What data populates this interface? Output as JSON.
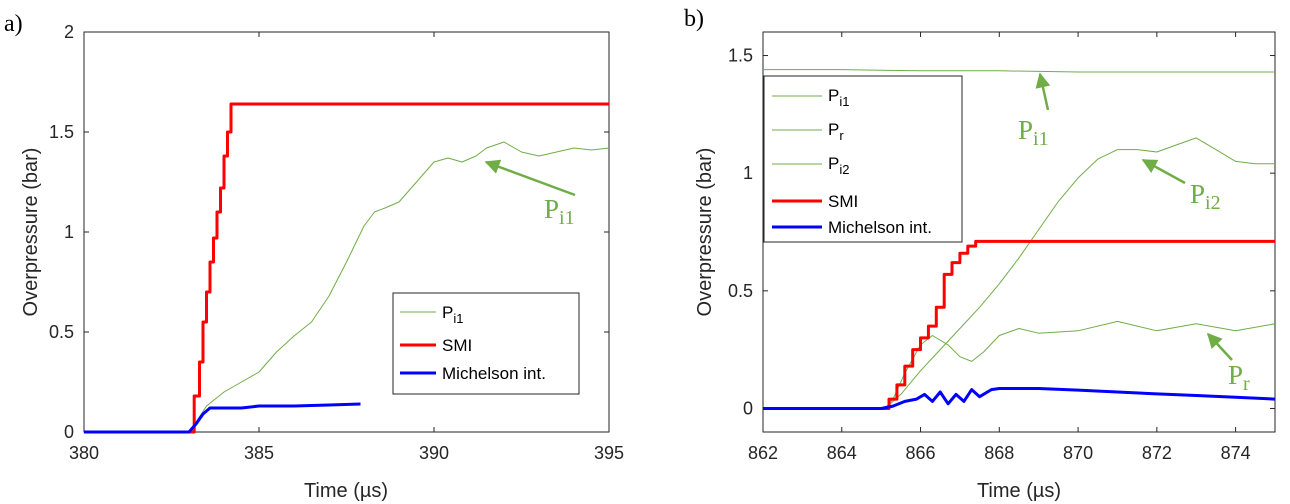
{
  "colors": {
    "incident": "#70AD47",
    "smi": "#FF0000",
    "michelson": "#0000FF",
    "axis": "#262626"
  },
  "chart_data": [
    {
      "panel_label": "a)",
      "type": "line",
      "xlabel": "Time (µs)",
      "ylabel": "Overpressure (bar)",
      "xlim": [
        380,
        395
      ],
      "ylim": [
        0,
        2
      ],
      "xticks": [
        "380",
        "385",
        "390",
        "395"
      ],
      "yticks": [
        "0",
        "0.5",
        "1",
        "1.5",
        "2"
      ],
      "grid": false,
      "legend_position": "bottom-right",
      "series": [
        {
          "name": "P",
          "sub": "i1",
          "color": "#70AD47",
          "width": 1,
          "x": [
            380,
            383.0,
            383.2,
            383.5,
            384.0,
            384.5,
            385.0,
            385.5,
            386.0,
            386.5,
            387.0,
            387.5,
            388.0,
            388.3,
            388.6,
            389.0,
            389.5,
            390.0,
            390.4,
            390.8,
            391.2,
            391.5,
            392.0,
            392.5,
            393.0,
            393.5,
            394.0,
            394.5,
            395.0
          ],
          "y": [
            0,
            0,
            0.05,
            0.13,
            0.2,
            0.25,
            0.3,
            0.4,
            0.48,
            0.55,
            0.68,
            0.85,
            1.03,
            1.1,
            1.12,
            1.15,
            1.25,
            1.35,
            1.37,
            1.35,
            1.38,
            1.42,
            1.45,
            1.4,
            1.38,
            1.4,
            1.42,
            1.41,
            1.42
          ]
        },
        {
          "name": "SMI",
          "color": "#FF0000",
          "width": 3,
          "x": [
            380,
            383.15,
            383.15,
            383.3,
            383.3,
            383.4,
            383.4,
            383.5,
            383.5,
            383.6,
            383.6,
            383.7,
            383.7,
            383.8,
            383.8,
            383.9,
            383.9,
            384.0,
            384.0,
            384.1,
            384.1,
            384.2,
            384.2,
            395
          ],
          "y": [
            0,
            0,
            0.18,
            0.18,
            0.35,
            0.35,
            0.55,
            0.55,
            0.7,
            0.7,
            0.85,
            0.85,
            0.97,
            0.97,
            1.1,
            1.1,
            1.22,
            1.22,
            1.38,
            1.38,
            1.5,
            1.5,
            1.64,
            1.64
          ]
        },
        {
          "name": "Michelson int.",
          "color": "#0000FF",
          "width": 3,
          "x": [
            380,
            383.0,
            383.2,
            383.4,
            383.6,
            384.0,
            384.5,
            385.0,
            385.5,
            386.0,
            387.0,
            387.9
          ],
          "y": [
            0,
            0,
            0.04,
            0.09,
            0.12,
            0.12,
            0.12,
            0.13,
            0.13,
            0.13,
            0.135,
            0.14
          ]
        }
      ],
      "annotations": [
        {
          "text": "P",
          "sub": "i1"
        }
      ]
    },
    {
      "panel_label": "b)",
      "type": "line",
      "xlabel": "Time (µs)",
      "ylabel": "Overpressure (bar)",
      "xlim": [
        862,
        875
      ],
      "ylim": [
        -0.1,
        1.6
      ],
      "xticks": [
        "862",
        "864",
        "866",
        "868",
        "870",
        "872",
        "874"
      ],
      "yticks": [
        "0",
        "0.5",
        "1",
        "1.5"
      ],
      "grid": false,
      "legend_position": "top-left",
      "series": [
        {
          "name": "P",
          "sub": "i1",
          "color": "#70AD47",
          "width": 1,
          "x": [
            862,
            864,
            866,
            868,
            870,
            872,
            874,
            875
          ],
          "y": [
            1.44,
            1.44,
            1.435,
            1.435,
            1.43,
            1.43,
            1.43,
            1.43
          ]
        },
        {
          "name": "P",
          "sub": "r",
          "color": "#70AD47",
          "width": 1,
          "x": [
            862,
            865.1,
            865.3,
            865.6,
            866.0,
            866.3,
            866.7,
            867.0,
            867.3,
            867.6,
            868.0,
            868.5,
            869.0,
            870.0,
            871.0,
            872.0,
            873.0,
            874.0,
            875.0
          ],
          "y": [
            0,
            0,
            0.04,
            0.15,
            0.27,
            0.31,
            0.27,
            0.22,
            0.2,
            0.24,
            0.31,
            0.34,
            0.32,
            0.33,
            0.37,
            0.33,
            0.36,
            0.33,
            0.36
          ]
        },
        {
          "name": "P",
          "sub": "i2",
          "color": "#70AD47",
          "width": 1,
          "x": [
            862,
            865.1,
            865.5,
            866.0,
            866.5,
            867.0,
            867.5,
            868.0,
            868.5,
            869.0,
            869.5,
            870.0,
            870.5,
            871.0,
            871.5,
            872.0,
            872.5,
            873.0,
            873.5,
            874.0,
            874.5,
            875.0
          ],
          "y": [
            0,
            0,
            0.06,
            0.16,
            0.25,
            0.34,
            0.43,
            0.53,
            0.64,
            0.76,
            0.88,
            0.98,
            1.06,
            1.1,
            1.1,
            1.09,
            1.12,
            1.15,
            1.1,
            1.05,
            1.04,
            1.04
          ]
        },
        {
          "name": "SMI",
          "color": "#FF0000",
          "width": 3,
          "x": [
            862,
            865.2,
            865.2,
            865.4,
            865.4,
            865.6,
            865.6,
            865.8,
            865.8,
            866.0,
            866.0,
            866.2,
            866.2,
            866.4,
            866.4,
            866.6,
            866.6,
            866.8,
            866.8,
            867.0,
            867.0,
            867.2,
            867.2,
            867.4,
            867.4,
            875
          ],
          "y": [
            0,
            0,
            0.04,
            0.04,
            0.1,
            0.1,
            0.18,
            0.18,
            0.25,
            0.25,
            0.3,
            0.3,
            0.35,
            0.35,
            0.43,
            0.43,
            0.57,
            0.57,
            0.62,
            0.62,
            0.66,
            0.66,
            0.69,
            0.69,
            0.71,
            0.71
          ]
        },
        {
          "name": "Michelson int.",
          "color": "#0000FF",
          "width": 3,
          "x": [
            862,
            865.0,
            865.3,
            865.6,
            865.9,
            866.1,
            866.3,
            866.5,
            866.7,
            866.9,
            867.1,
            867.3,
            867.5,
            867.8,
            868.0,
            869.0,
            870.0,
            871.0,
            872.0,
            873.0,
            874.0,
            875.0
          ],
          "y": [
            0,
            0,
            0.01,
            0.03,
            0.04,
            0.06,
            0.03,
            0.07,
            0.02,
            0.06,
            0.03,
            0.08,
            0.05,
            0.08,
            0.085,
            0.085,
            0.078,
            0.07,
            0.062,
            0.055,
            0.048,
            0.04
          ]
        }
      ],
      "annotations": [
        {
          "text": "P",
          "sub": "i1"
        },
        {
          "text": "P",
          "sub": "i2"
        },
        {
          "text": "P",
          "sub": "r"
        }
      ]
    }
  ]
}
